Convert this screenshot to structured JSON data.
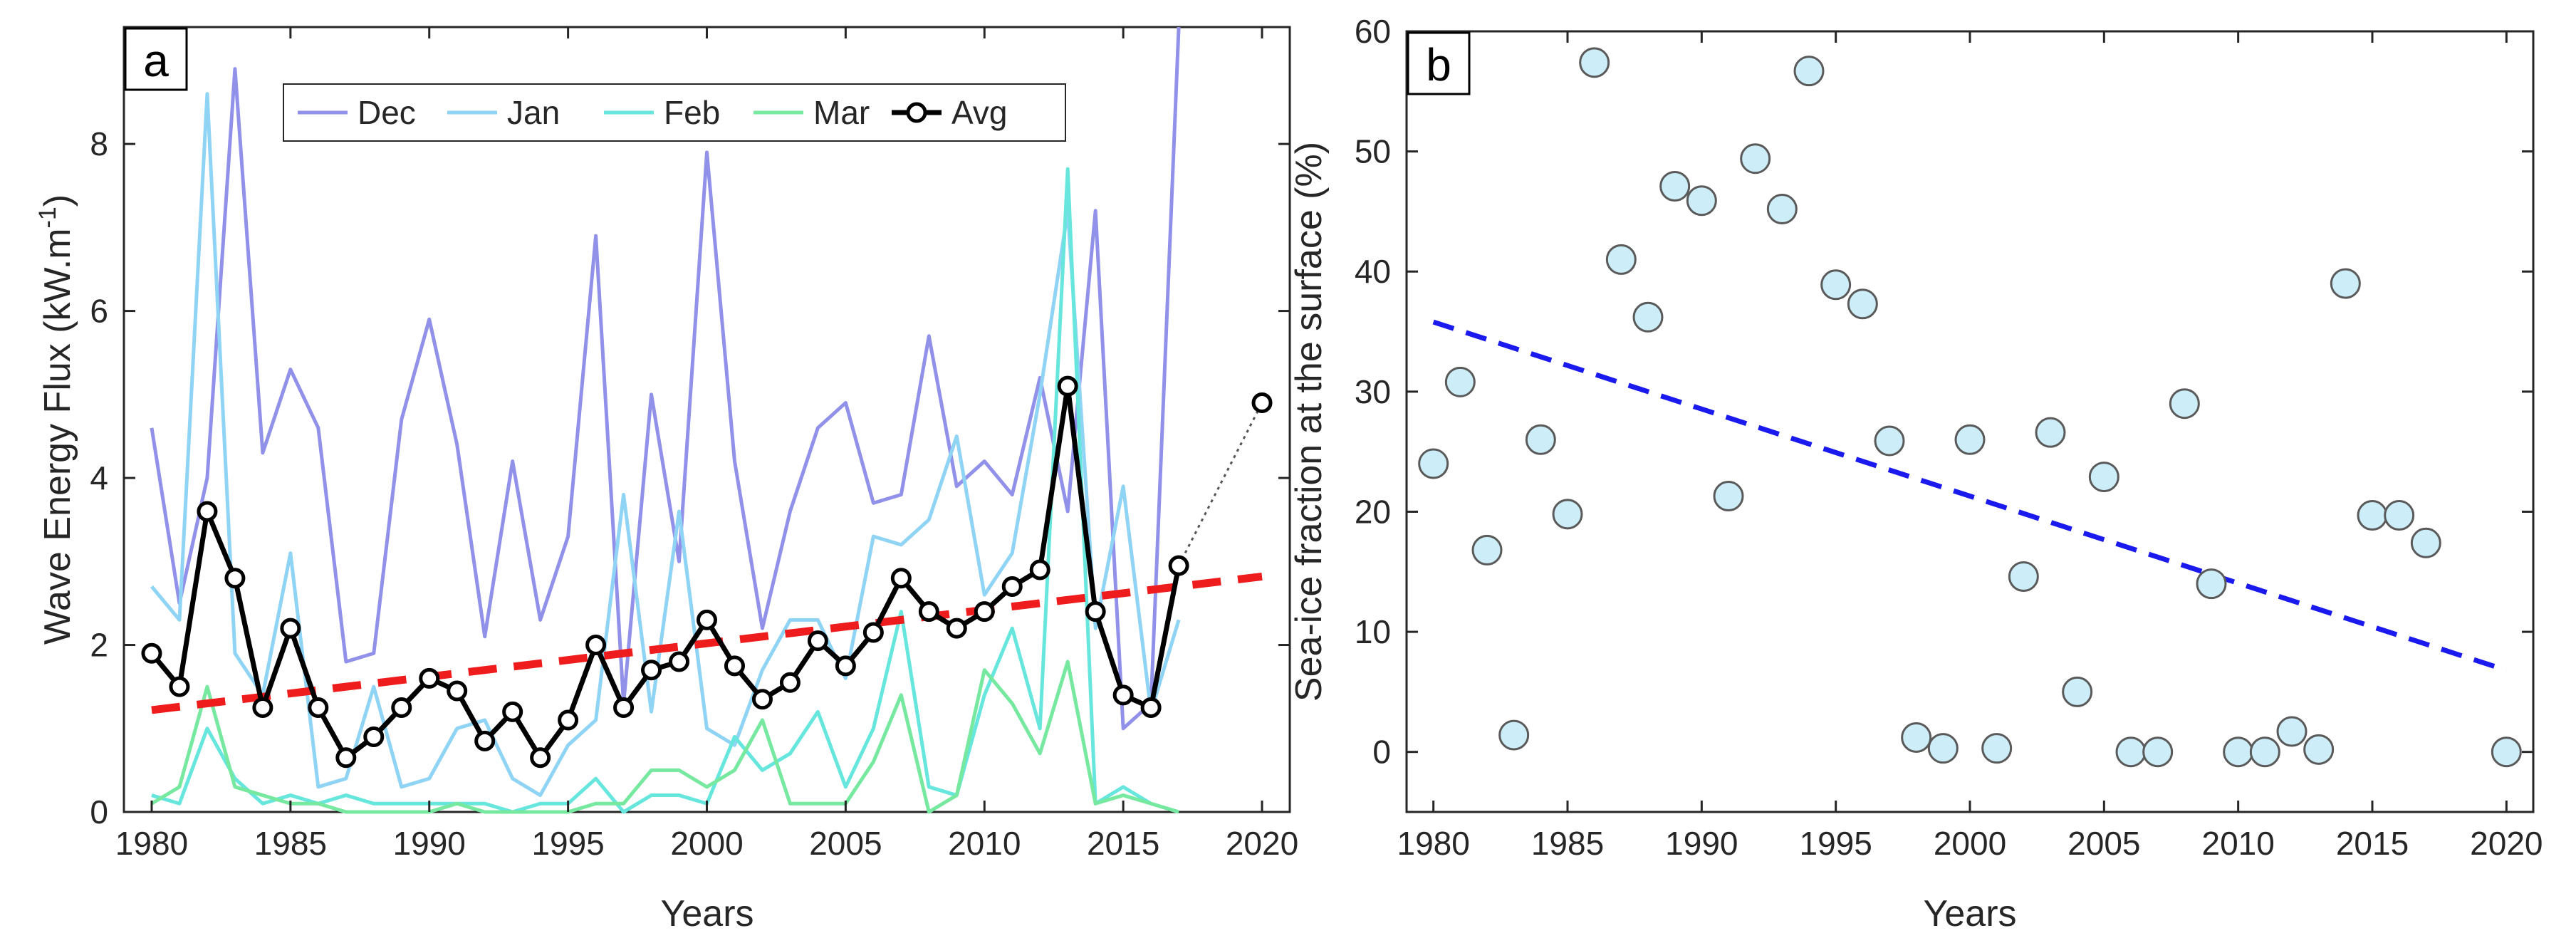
{
  "chart_data": [
    {
      "panel": "a",
      "type": "line",
      "xlabel": "Years",
      "ylabel_main": "Wave Energy Flux (kW.m",
      "ylabel_sup": "-1",
      "ylabel_close": ")",
      "xlim": [
        1979,
        2021
      ],
      "ylim": [
        0,
        9.4
      ],
      "xticks": [
        1980,
        1985,
        1990,
        1995,
        2000,
        2005,
        2010,
        2015,
        2020
      ],
      "yticks": [
        0,
        2,
        4,
        6,
        8
      ],
      "grid": false,
      "legend_placement": "top",
      "colors": {
        "Dec": "#9191ea",
        "Jan": "#8fd3f5",
        "Feb": "#66e6dc",
        "Mar": "#77e89f",
        "Avg": "#000000",
        "trend": "#ee1c1c",
        "projection": "#555555"
      },
      "x": [
        1980,
        1981,
        1982,
        1983,
        1984,
        1985,
        1986,
        1987,
        1988,
        1989,
        1990,
        1991,
        1992,
        1993,
        1994,
        1995,
        1996,
        1997,
        1998,
        1999,
        2000,
        2001,
        2002,
        2003,
        2004,
        2005,
        2006,
        2007,
        2008,
        2009,
        2010,
        2011,
        2012,
        2013,
        2014,
        2015,
        2016,
        2017
      ],
      "series": [
        {
          "name": "Dec",
          "values": [
            4.6,
            2.5,
            4.0,
            8.9,
            4.3,
            5.3,
            4.6,
            1.8,
            1.9,
            4.7,
            5.9,
            4.4,
            2.1,
            4.2,
            2.3,
            3.3,
            6.9,
            1.3,
            5.0,
            3.0,
            7.9,
            4.2,
            2.2,
            3.6,
            4.6,
            4.9,
            3.7,
            3.8,
            5.7,
            3.9,
            4.2,
            3.8,
            5.2,
            3.6,
            7.2,
            1.0,
            1.3,
            9.4
          ]
        },
        {
          "name": "Jan",
          "values": [
            2.7,
            2.3,
            8.6,
            1.9,
            1.4,
            3.1,
            0.3,
            0.4,
            1.5,
            0.3,
            0.4,
            1.0,
            1.1,
            0.4,
            0.2,
            0.8,
            1.1,
            3.8,
            1.2,
            3.6,
            1.0,
            0.8,
            1.7,
            2.3,
            2.3,
            1.6,
            3.3,
            3.2,
            3.5,
            4.5,
            2.6,
            3.1,
            5.0,
            7.2,
            2.2,
            3.9,
            1.2,
            2.3
          ]
        },
        {
          "name": "Feb",
          "values": [
            0.2,
            0.1,
            1.0,
            0.4,
            0.1,
            0.2,
            0.1,
            0.2,
            0.1,
            0.1,
            0.1,
            0.1,
            0.1,
            0.0,
            0.1,
            0.1,
            0.4,
            0.0,
            0.2,
            0.2,
            0.1,
            0.9,
            0.5,
            0.7,
            1.2,
            0.3,
            1.0,
            2.4,
            0.3,
            0.2,
            1.4,
            2.2,
            1.0,
            7.7,
            0.1,
            0.3,
            0.1,
            0.0
          ]
        },
        {
          "name": "Mar",
          "values": [
            0.1,
            0.3,
            1.5,
            0.3,
            0.2,
            0.1,
            0.1,
            0.0,
            0.0,
            0.0,
            0.0,
            0.1,
            0.0,
            0.0,
            0.0,
            0.0,
            0.1,
            0.1,
            0.5,
            0.5,
            0.3,
            0.5,
            1.1,
            0.1,
            0.1,
            0.1,
            0.6,
            1.4,
            0.0,
            0.2,
            1.7,
            1.3,
            0.7,
            1.8,
            0.1,
            0.2,
            0.1,
            0.0
          ]
        },
        {
          "name": "Avg",
          "values": [
            1.9,
            1.5,
            3.6,
            2.8,
            1.25,
            2.2,
            1.25,
            0.65,
            0.9,
            1.25,
            1.6,
            1.45,
            0.85,
            1.2,
            0.65,
            1.1,
            2.0,
            1.25,
            1.7,
            1.8,
            2.3,
            1.75,
            1.35,
            1.55,
            2.05,
            1.75,
            2.15,
            2.8,
            2.4,
            2.2,
            2.4,
            2.7,
            2.9,
            5.1,
            2.4,
            1.4,
            1.25,
            2.95
          ]
        }
      ],
      "projection": {
        "x": [
          2017,
          2020
        ],
        "y": [
          2.95,
          4.9
        ]
      },
      "trend": {
        "x": [
          1980,
          2020
        ],
        "y": [
          1.22,
          2.82
        ]
      }
    },
    {
      "panel": "b",
      "type": "scatter",
      "xlabel": "Years",
      "ylabel": "Sea-ice fraction at the surface (%)",
      "xlim": [
        1979,
        2021
      ],
      "ylim": [
        -5,
        60
      ],
      "xticks": [
        1980,
        1985,
        1990,
        1995,
        2000,
        2005,
        2010,
        2015,
        2020
      ],
      "yticks": [
        0,
        10,
        20,
        30,
        40,
        50,
        60
      ],
      "grid": false,
      "colors": {
        "marker_fill": "#cdeef8",
        "marker_edge": "#5a5a5a",
        "trend": "#1a1aee"
      },
      "x": [
        1980,
        1981,
        1982,
        1983,
        1984,
        1985,
        1986,
        1987,
        1988,
        1989,
        1990,
        1991,
        1992,
        1993,
        1994,
        1995,
        1996,
        1997,
        1998,
        1999,
        2000,
        2001,
        2002,
        2003,
        2004,
        2005,
        2006,
        2007,
        2008,
        2009,
        2010,
        2011,
        2012,
        2013,
        2014,
        2015,
        2016,
        2017,
        2020
      ],
      "y": [
        24,
        30.8,
        16.8,
        1.4,
        26,
        19.8,
        57.4,
        41,
        36.2,
        47.1,
        45.9,
        21.3,
        49.4,
        45.2,
        56.7,
        38.9,
        37.3,
        25.9,
        1.2,
        0.3,
        26,
        0.3,
        14.6,
        26.6,
        5,
        22.9,
        0,
        0,
        29,
        14,
        0,
        0,
        1.7,
        0.2,
        39,
        19.7,
        19.7,
        17.4,
        0
      ],
      "trend": {
        "x": [
          1980,
          2020
        ],
        "y": [
          35.8,
          6.8
        ]
      }
    }
  ],
  "panels": {
    "a_letter": "a",
    "b_letter": "b"
  }
}
